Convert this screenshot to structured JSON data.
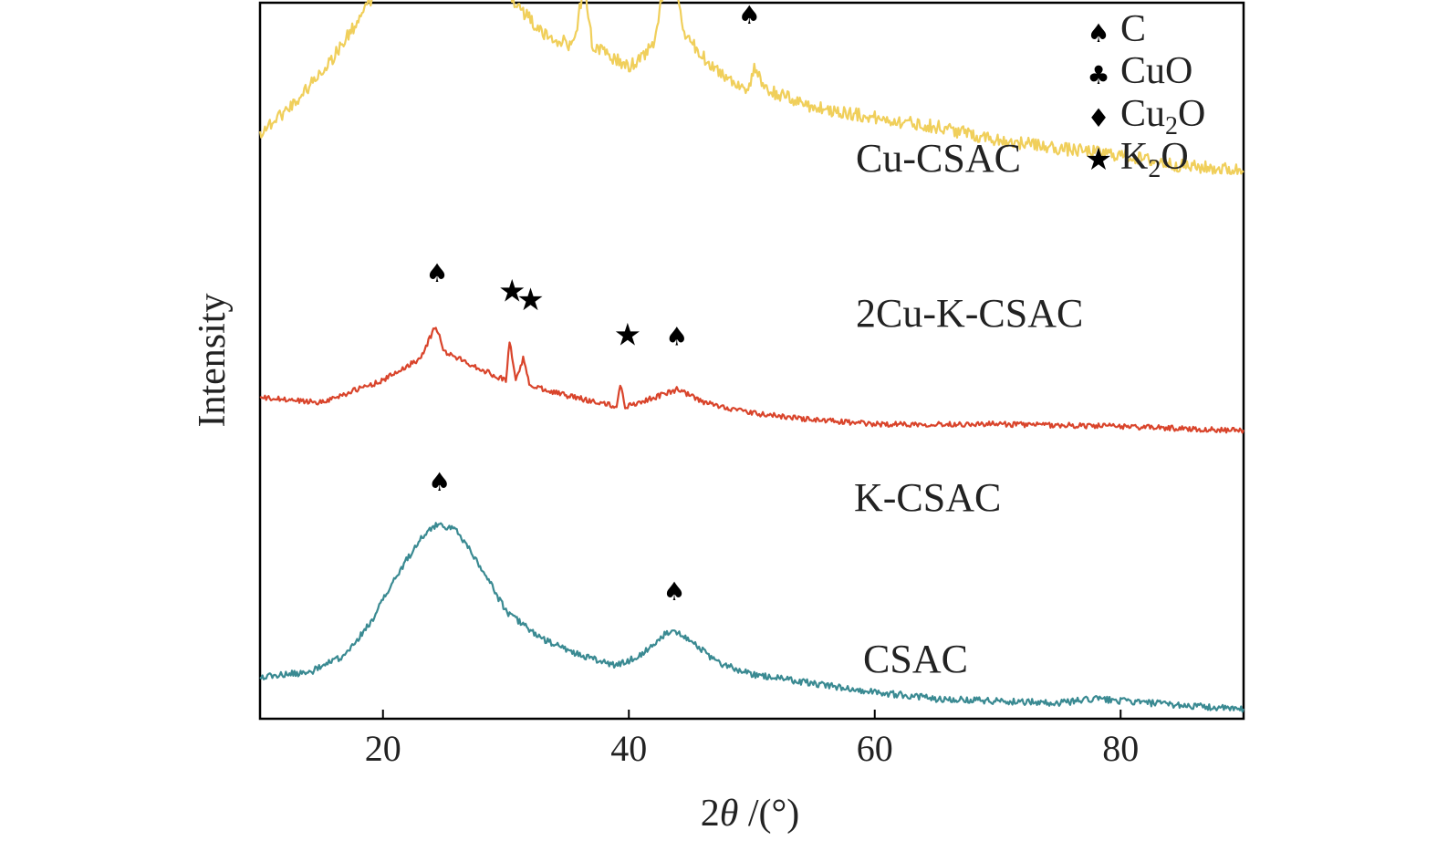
{
  "chart_data": {
    "type": "line",
    "xlabel_prefix": "2",
    "xlabel_theta": "θ",
    "xlabel_suffix": " /(°)",
    "ylabel": "Intensity",
    "xlim": [
      10,
      90
    ],
    "x_ticks": [
      20,
      40,
      60,
      80
    ],
    "y_ticks_shown": false,
    "grid": false,
    "legend": {
      "placement": "top-right",
      "entries": [
        {
          "icon": "spade-icon",
          "symbol": "♠",
          "phase": "C",
          "label_base": "C",
          "label_sub": "",
          "label_tail": ""
        },
        {
          "icon": "club-icon",
          "symbol": "♣",
          "phase": "CuO",
          "label_base": "CuO",
          "label_sub": "",
          "label_tail": ""
        },
        {
          "icon": "diamond-icon",
          "symbol": "♦",
          "phase": "Cu2O",
          "label_base": "Cu",
          "label_sub": "2",
          "label_tail": "O"
        },
        {
          "icon": "star-icon",
          "symbol": "★",
          "phase": "K2O",
          "label_base": "K",
          "label_sub": "2",
          "label_tail": "O"
        }
      ]
    },
    "series": [
      {
        "name": "Cu-CSAC",
        "color": "#4a5d23",
        "noise": 0.05,
        "points": [
          [
            10,
            1.7
          ],
          [
            12,
            1.95
          ],
          [
            15,
            2.3
          ],
          [
            18,
            2.75
          ],
          [
            21,
            3.25
          ],
          [
            24,
            3.5
          ],
          [
            26,
            3.4
          ],
          [
            28,
            3.0
          ],
          [
            30,
            2.6
          ],
          [
            32,
            2.3
          ],
          [
            34,
            2.2
          ],
          [
            35.3,
            2.7
          ],
          [
            35.7,
            2.2
          ],
          [
            36.3,
            2.95
          ],
          [
            36.8,
            2.2
          ],
          [
            38,
            2.15
          ],
          [
            40,
            2.05
          ],
          [
            42,
            2.4
          ],
          [
            43.2,
            3.4
          ],
          [
            44.3,
            2.4
          ],
          [
            46,
            2.05
          ],
          [
            48,
            1.95
          ],
          [
            49.8,
            1.9
          ],
          [
            50.1,
            2.25
          ],
          [
            50.5,
            1.9
          ],
          [
            55,
            1.8
          ],
          [
            60,
            1.75
          ],
          [
            65,
            1.7
          ],
          [
            70,
            1.65
          ],
          [
            75,
            1.6
          ],
          [
            80,
            1.57
          ],
          [
            85,
            1.52
          ],
          [
            90,
            1.5
          ]
        ],
        "peaks": [
          {
            "x": 25.0,
            "y": 3.72,
            "icon": "spade-icon",
            "symbol": "♠"
          },
          {
            "x": 35.2,
            "y": 2.92,
            "icon": "club-icon",
            "symbol": "♣"
          },
          {
            "x": 36.6,
            "y": 3.12,
            "icon": "diamond-icon",
            "symbol": "♦"
          },
          {
            "x": 43.2,
            "y": 3.6,
            "icon": "spade-icon",
            "symbol": "♠"
          },
          {
            "x": 50.0,
            "y": 2.5,
            "icon": "spade-icon",
            "symbol": "♠"
          }
        ]
      },
      {
        "name": "2Cu-K-CSAC",
        "color": "#f0cf5b",
        "noise": 0.03,
        "points": [
          [
            10,
            1.05
          ],
          [
            13,
            1.2
          ],
          [
            16,
            1.4
          ],
          [
            19,
            1.65
          ],
          [
            22,
            1.95
          ],
          [
            24.5,
            2.1
          ],
          [
            27,
            2.0
          ],
          [
            30,
            1.7
          ],
          [
            33,
            1.5
          ],
          [
            35.5,
            1.45
          ],
          [
            36.4,
            1.75
          ],
          [
            37,
            1.45
          ],
          [
            40,
            1.35
          ],
          [
            42,
            1.45
          ],
          [
            43.4,
            1.9
          ],
          [
            44.5,
            1.5
          ],
          [
            46,
            1.4
          ],
          [
            48,
            1.3
          ],
          [
            49.8,
            1.25
          ],
          [
            50.2,
            1.35
          ],
          [
            51,
            1.25
          ],
          [
            55,
            1.17
          ],
          [
            60,
            1.12
          ],
          [
            65,
            1.08
          ],
          [
            70,
            1.02
          ],
          [
            75,
            0.98
          ],
          [
            80,
            0.95
          ],
          [
            85,
            0.9
          ],
          [
            90,
            0.88
          ]
        ],
        "peaks": [
          {
            "x": 24.8,
            "y": 2.3,
            "icon": "spade-icon",
            "symbol": "♠"
          },
          {
            "x": 36.4,
            "y": 1.95,
            "icon": "diamond-icon",
            "symbol": "♦"
          },
          {
            "x": 43.5,
            "y": 2.1,
            "icon": "spade-icon",
            "symbol": "♠"
          },
          {
            "x": 49.8,
            "y": 1.55,
            "icon": "spade-icon",
            "symbol": "♠"
          }
        ]
      },
      {
        "name": "K-CSAC",
        "color": "#d9442b",
        "noise": 0.012,
        "points": [
          [
            10,
            0.62
          ],
          [
            15,
            0.6
          ],
          [
            20,
            0.7
          ],
          [
            23,
            0.8
          ],
          [
            24.3,
            0.95
          ],
          [
            25,
            0.83
          ],
          [
            28,
            0.75
          ],
          [
            30,
            0.7
          ],
          [
            30.3,
            0.88
          ],
          [
            30.8,
            0.7
          ],
          [
            31.4,
            0.8
          ],
          [
            31.9,
            0.68
          ],
          [
            35,
            0.63
          ],
          [
            39,
            0.58
          ],
          [
            39.3,
            0.68
          ],
          [
            39.7,
            0.58
          ],
          [
            42,
            0.62
          ],
          [
            44,
            0.66
          ],
          [
            46,
            0.6
          ],
          [
            50,
            0.55
          ],
          [
            55,
            0.52
          ],
          [
            60,
            0.5
          ],
          [
            70,
            0.5
          ],
          [
            80,
            0.49
          ],
          [
            90,
            0.47
          ]
        ],
        "peaks": [
          {
            "x": 24.4,
            "y": 1.15,
            "icon": "spade-icon",
            "symbol": "♠"
          },
          {
            "x": 30.5,
            "y": 1.06,
            "icon": "star-icon",
            "symbol": "★"
          },
          {
            "x": 32.0,
            "y": 1.02,
            "icon": "star-icon",
            "symbol": "★"
          },
          {
            "x": 39.9,
            "y": 0.86,
            "icon": "star-icon",
            "symbol": "★"
          },
          {
            "x": 43.9,
            "y": 0.86,
            "icon": "spade-icon",
            "symbol": "♠"
          }
        ]
      },
      {
        "name": "CSAC",
        "color": "#3a8a92",
        "noise": 0.015,
        "points": [
          [
            10,
            0.15
          ],
          [
            14,
            0.17
          ],
          [
            17,
            0.25
          ],
          [
            19,
            0.4
          ],
          [
            21,
            0.6
          ],
          [
            23,
            0.78
          ],
          [
            24.5,
            0.85
          ],
          [
            26,
            0.82
          ],
          [
            28,
            0.65
          ],
          [
            30,
            0.45
          ],
          [
            33,
            0.32
          ],
          [
            36,
            0.25
          ],
          [
            39,
            0.2
          ],
          [
            41,
            0.25
          ],
          [
            43.5,
            0.37
          ],
          [
            45,
            0.32
          ],
          [
            47,
            0.22
          ],
          [
            50,
            0.16
          ],
          [
            55,
            0.12
          ],
          [
            60,
            0.08
          ],
          [
            65,
            0.05
          ],
          [
            70,
            0.04
          ],
          [
            75,
            0.03
          ],
          [
            78,
            0.05
          ],
          [
            80,
            0.04
          ],
          [
            85,
            0.02
          ],
          [
            90,
            0.0
          ]
        ],
        "peaks": [
          {
            "x": 24.6,
            "y": 1.0,
            "icon": "spade-icon",
            "symbol": "♠"
          },
          {
            "x": 43.7,
            "y": 0.5,
            "icon": "spade-icon",
            "symbol": "♠"
          }
        ]
      }
    ]
  }
}
